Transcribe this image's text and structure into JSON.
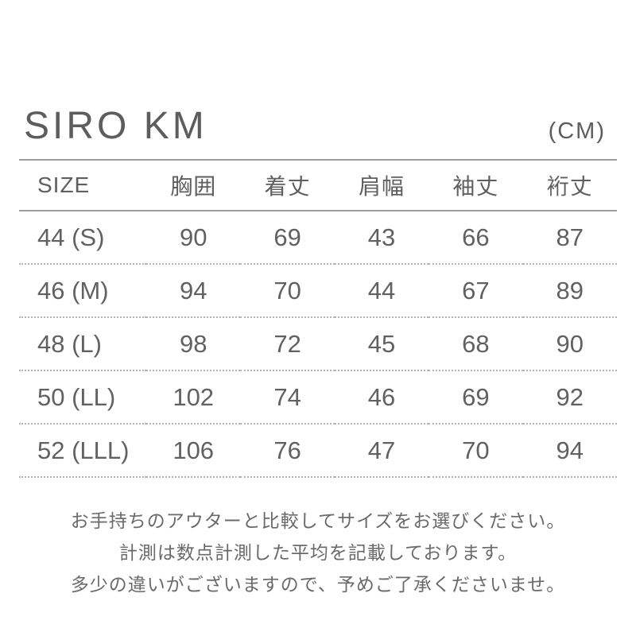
{
  "header": {
    "title": "SIRO KM",
    "unit": "(CM)"
  },
  "chart_data": {
    "type": "table",
    "title": "SIRO KM",
    "unit": "CM",
    "columns": [
      "SIZE",
      "胸囲",
      "着丈",
      "肩幅",
      "袖丈",
      "裄丈"
    ],
    "rows": [
      [
        "44 (S)",
        90,
        69,
        43,
        66,
        87
      ],
      [
        "46 (M)",
        94,
        70,
        44,
        67,
        89
      ],
      [
        "48 (L)",
        98,
        72,
        45,
        68,
        90
      ],
      [
        "50 (LL)",
        102,
        74,
        46,
        69,
        92
      ],
      [
        "52 (LLL)",
        106,
        76,
        47,
        70,
        94
      ]
    ]
  },
  "notes": [
    "お手持ちのアウターと比較してサイズをお選びください。",
    "計測は数点計測した平均を記載しております。",
    "多少の違いがございますので、予めご了承くださいませ。"
  ],
  "colors": {
    "text": "#5f5f5f",
    "solid_line": "#9c9c9c",
    "dotted_line": "#b4b4b4",
    "background": "#ffffff"
  }
}
